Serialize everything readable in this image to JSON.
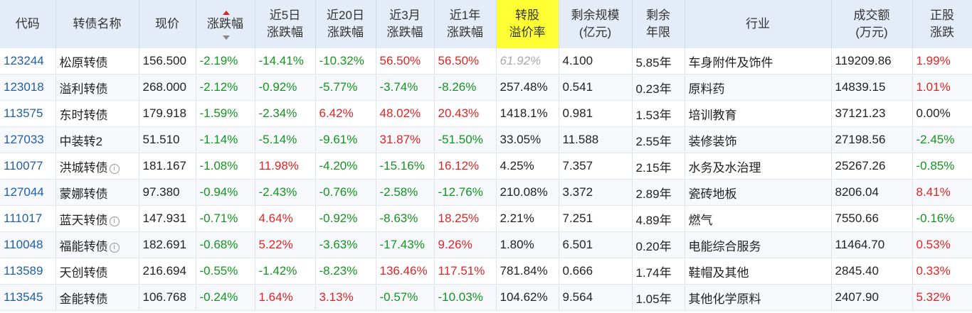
{
  "table": {
    "header": [
      [
        "代码"
      ],
      [
        "转债名称"
      ],
      [
        "现价"
      ],
      [
        "涨跌幅"
      ],
      [
        "近5日",
        "涨跌幅"
      ],
      [
        "近20日",
        "涨跌幅"
      ],
      [
        "近3月",
        "涨跌幅"
      ],
      [
        "近1年",
        "涨跌幅"
      ],
      [
        "转股",
        "溢价率"
      ],
      [
        "剩余规模",
        "(亿元)"
      ],
      [
        "剩余",
        "年限"
      ],
      [
        "行业"
      ],
      [
        "成交额",
        "(万元)"
      ],
      [
        "正股",
        "涨跌"
      ]
    ],
    "rows": [
      [
        "123244",
        "松原转债",
        "156.500",
        "-2.19%",
        "-14.41%",
        "-10.32%",
        "56.50%",
        "56.50%",
        "61.92%",
        "4.100",
        "5.85年",
        "车身附件及饰件",
        "119209.86",
        "1.99%"
      ],
      [
        "123018",
        "溢利转债",
        "268.000",
        "-2.12%",
        "-0.92%",
        "-5.77%",
        "-3.74%",
        "-8.26%",
        "257.48%",
        "0.541",
        "0.23年",
        "原料药",
        "14839.15",
        "1.01%"
      ],
      [
        "113575",
        "东时转债",
        "179.918",
        "-1.59%",
        "-2.34%",
        "6.42%",
        "48.02%",
        "20.43%",
        "1418.1%",
        "0.981",
        "1.53年",
        "培训教育",
        "37121.23",
        "0.00%"
      ],
      [
        "127033",
        "中装转2",
        "51.510",
        "-1.14%",
        "-5.14%",
        "-9.61%",
        "31.87%",
        "-51.50%",
        "33.05%",
        "11.588",
        "2.55年",
        "装修装饰",
        "27198.56",
        "-2.45%"
      ],
      [
        "110077",
        "洪城转债",
        "181.167",
        "-1.08%",
        "11.98%",
        "-4.20%",
        "-15.16%",
        "16.12%",
        "4.25%",
        "7.357",
        "2.15年",
        "水务及水治理",
        "25267.26",
        "-0.85%"
      ],
      [
        "127044",
        "蒙娜转债",
        "97.380",
        "-0.94%",
        "-2.43%",
        "-0.76%",
        "-2.58%",
        "-12.76%",
        "210.08%",
        "3.372",
        "2.89年",
        "瓷砖地板",
        "8206.04",
        "8.41%"
      ],
      [
        "111017",
        "蓝天转债",
        "147.931",
        "-0.71%",
        "4.64%",
        "-0.92%",
        "-8.63%",
        "18.25%",
        "2.21%",
        "7.251",
        "4.89年",
        "燃气",
        "7550.66",
        "-0.16%"
      ],
      [
        "110048",
        "福能转债",
        "182.691",
        "-0.68%",
        "5.22%",
        "-3.63%",
        "-17.43%",
        "9.26%",
        "1.80%",
        "6.501",
        "0.20年",
        "电能综合服务",
        "11464.70",
        "0.53%"
      ],
      [
        "113589",
        "天创转债",
        "216.694",
        "-0.55%",
        "-1.42%",
        "-8.23%",
        "136.46%",
        "117.51%",
        "781.84%",
        "0.666",
        "1.74年",
        "鞋帽及其他",
        "2845.40",
        "0.33%"
      ],
      [
        "113545",
        "金能转债",
        "106.768",
        "-0.24%",
        "1.64%",
        "3.13%",
        "-0.57%",
        "-10.03%",
        "104.62%",
        "9.564",
        "1.05年",
        "其他化学原料",
        "2407.90",
        "5.32%"
      ]
    ]
  }
}
